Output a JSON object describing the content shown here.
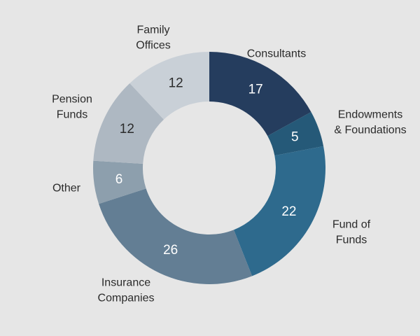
{
  "chart_data": {
    "type": "pie",
    "variant": "donut",
    "title": "",
    "categories": [
      "Consultants",
      "Endowments & Foundations",
      "Fund of Funds",
      "Insurance Companies",
      "Other",
      "Pension Funds",
      "Family Offices"
    ],
    "values": [
      17,
      5,
      22,
      26,
      6,
      12,
      12
    ],
    "category_label_lines": [
      [
        "Consultants"
      ],
      [
        "Endowments",
        "& Foundations"
      ],
      [
        "Fund of",
        "Funds"
      ],
      [
        "Insurance",
        "Companies"
      ],
      [
        "Other"
      ],
      [
        "Pension",
        "Funds"
      ],
      [
        "Family",
        "Offices"
      ]
    ],
    "colors": [
      "#253d5e",
      "#255978",
      "#2e6a8d",
      "#637e94",
      "#8d9fad",
      "#aeb8c2",
      "#c9d0d7"
    ],
    "value_label_colors": [
      "#ffffff",
      "#ffffff",
      "#ffffff",
      "#ffffff",
      "#ffffff",
      "#2b2b2b",
      "#2b2b2b"
    ],
    "start": "top",
    "direction": "clockwise",
    "legend": "none",
    "background": "#e6e6e6"
  }
}
